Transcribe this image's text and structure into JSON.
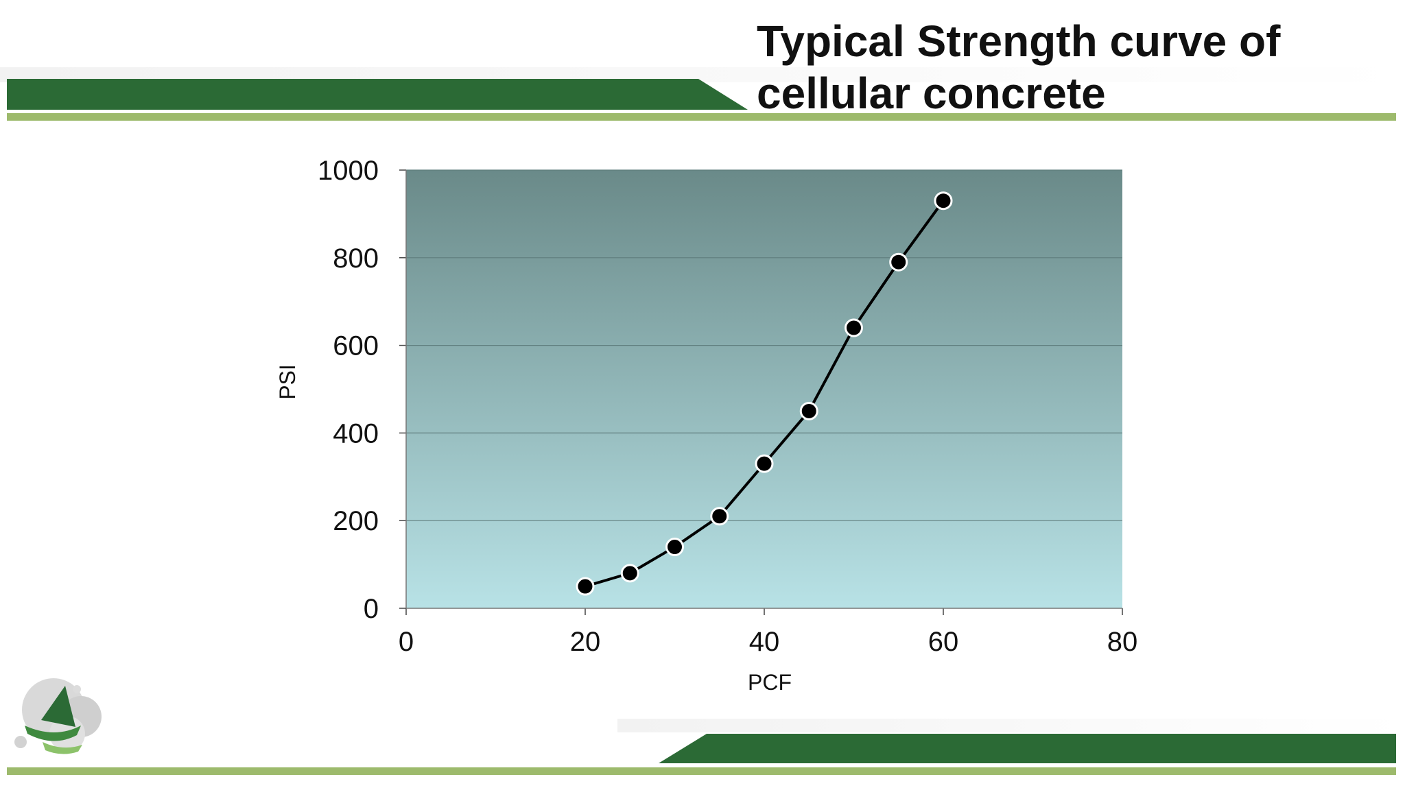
{
  "slide": {
    "title_line1": "Typical Strength curve of",
    "title_line2": "cellular concrete",
    "colors": {
      "band_dark": "#2b6a35",
      "band_light": "#9dba6c",
      "plot_top": "#6a8a89",
      "plot_bottom": "#b8e2e6",
      "marker": "#000000",
      "text": "#111111"
    },
    "logo_icon": "company-logo-icon"
  },
  "chart_data": {
    "type": "line",
    "title": "",
    "xlabel": "PCF",
    "ylabel": "PSI",
    "xlim": [
      0,
      80
    ],
    "ylim": [
      0,
      1000
    ],
    "xticks": [
      0,
      20,
      40,
      60,
      80
    ],
    "yticks": [
      0,
      200,
      400,
      600,
      800,
      1000
    ],
    "grid": "horizontal",
    "legend": "none",
    "series": [
      {
        "x": [
          20,
          25,
          30,
          35,
          40,
          45,
          50,
          55,
          60
        ],
        "values": [
          50,
          80,
          140,
          210,
          330,
          450,
          640,
          790,
          930
        ]
      }
    ]
  }
}
